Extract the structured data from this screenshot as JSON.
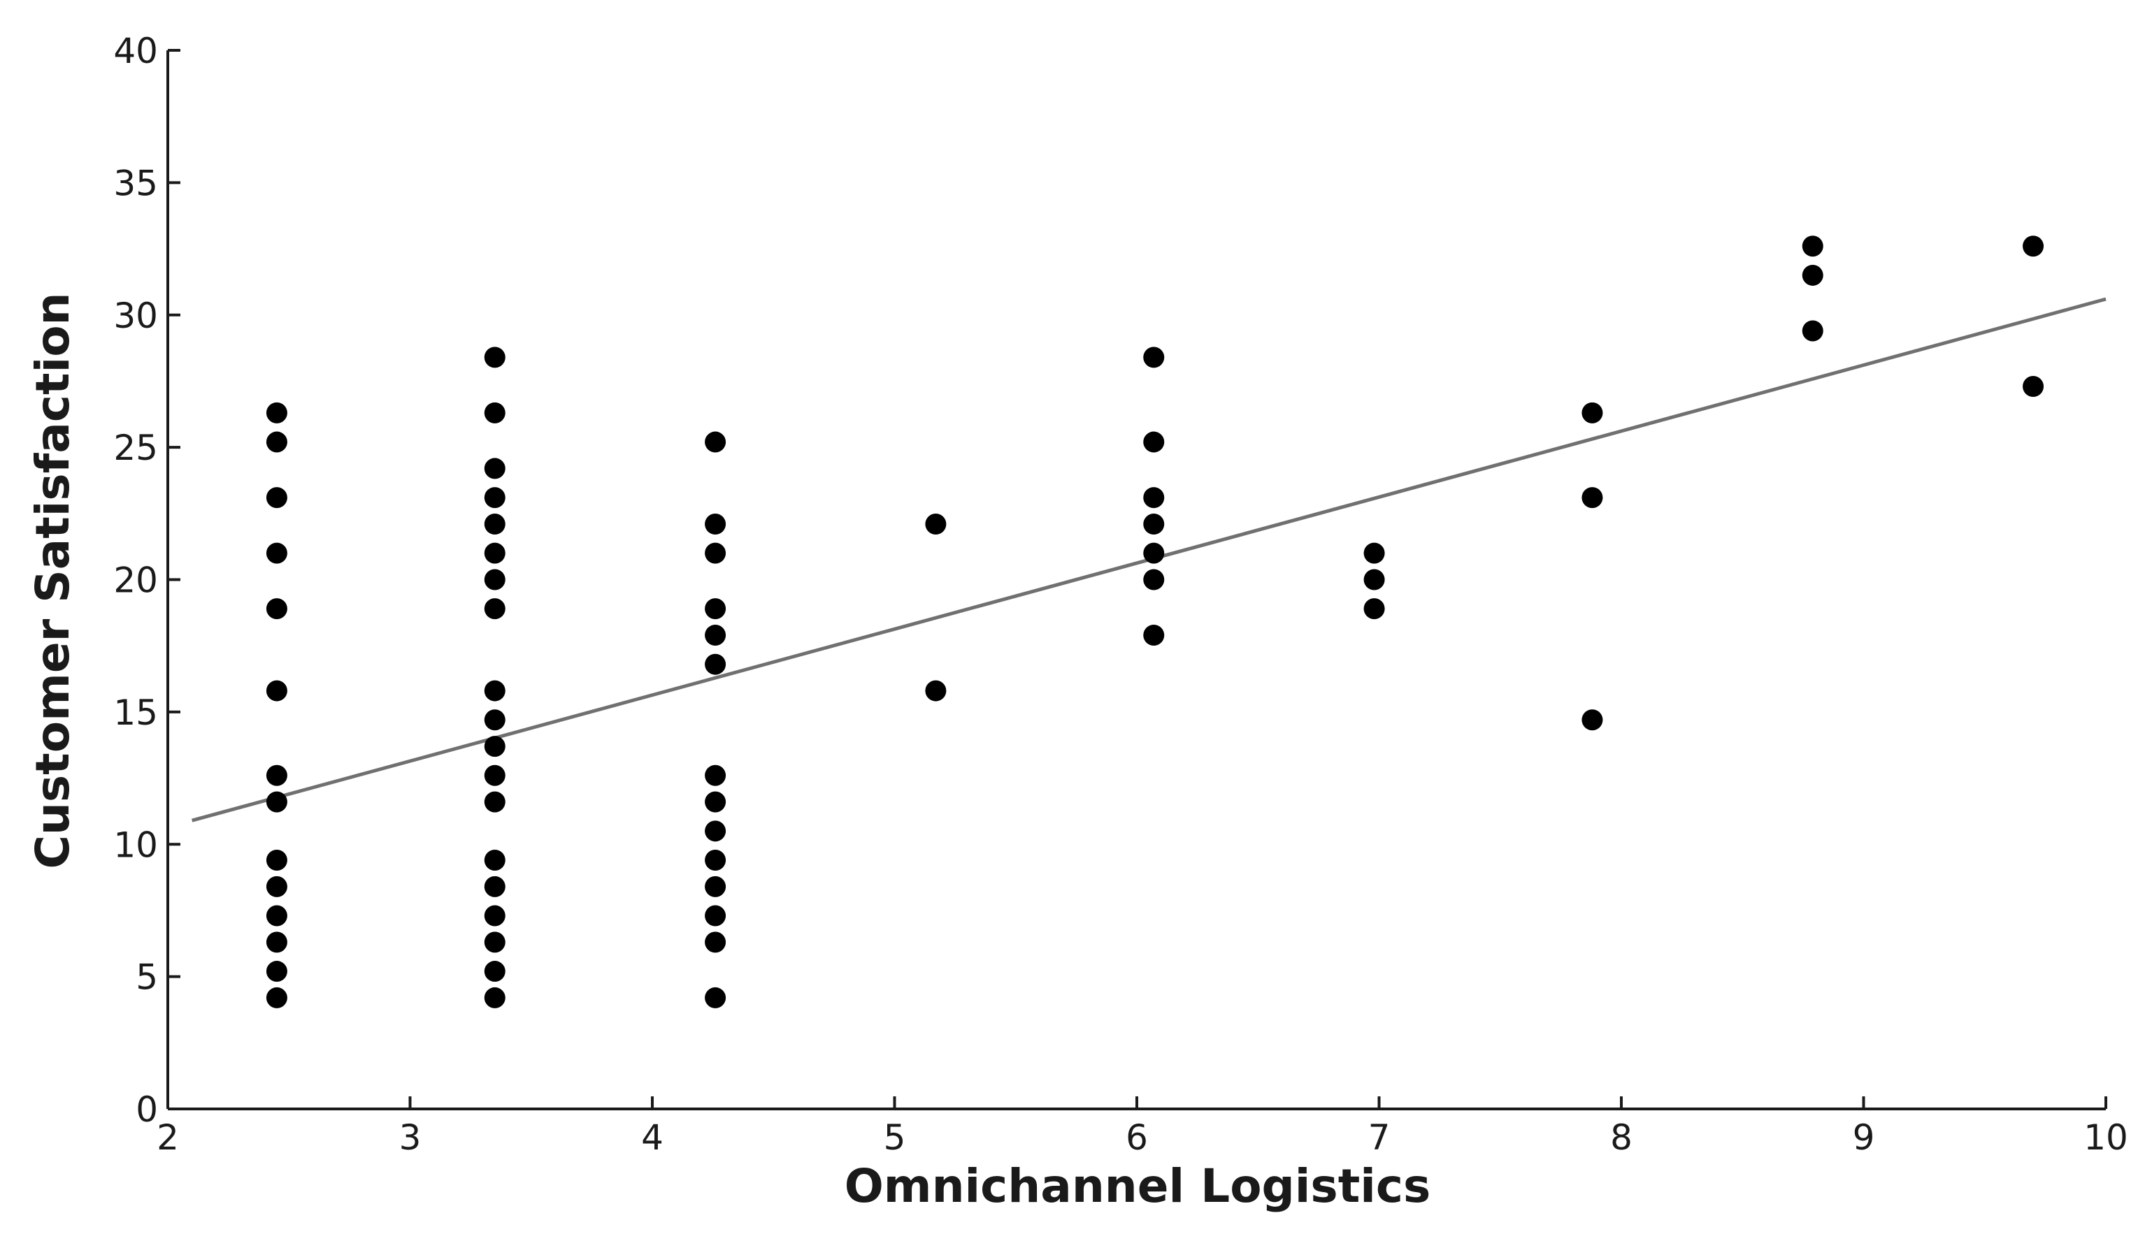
{
  "chart_data": {
    "type": "scatter",
    "title": "",
    "xlabel": "Omnichannel Logistics",
    "ylabel": "Customer Satisfaction",
    "xlim": [
      2,
      10
    ],
    "ylim": [
      0,
      40
    ],
    "xticks": [
      "2",
      "3",
      "4",
      "5",
      "6",
      "7",
      "8",
      "9",
      "10"
    ],
    "yticks": [
      "0",
      "5",
      "10",
      "15",
      "20",
      "25",
      "30",
      "35",
      "40"
    ],
    "grid": false,
    "legend": "none",
    "colors": {
      "points": "#000000",
      "trendline": "#707070",
      "axes": "#1a1a1a"
    },
    "points": [
      [
        2.45,
        4.2
      ],
      [
        2.45,
        5.2
      ],
      [
        2.45,
        6.3
      ],
      [
        2.45,
        7.3
      ],
      [
        2.45,
        8.4
      ],
      [
        2.45,
        9.4
      ],
      [
        2.45,
        11.6
      ],
      [
        2.45,
        12.6
      ],
      [
        2.45,
        15.8
      ],
      [
        2.45,
        18.9
      ],
      [
        2.45,
        21.0
      ],
      [
        2.45,
        23.1
      ],
      [
        2.45,
        25.2
      ],
      [
        2.45,
        26.3
      ],
      [
        3.35,
        4.2
      ],
      [
        3.35,
        5.2
      ],
      [
        3.35,
        6.3
      ],
      [
        3.35,
        7.3
      ],
      [
        3.35,
        8.4
      ],
      [
        3.35,
        9.4
      ],
      [
        3.35,
        11.6
      ],
      [
        3.35,
        12.6
      ],
      [
        3.35,
        13.7
      ],
      [
        3.35,
        14.7
      ],
      [
        3.35,
        15.8
      ],
      [
        3.35,
        18.9
      ],
      [
        3.35,
        20.0
      ],
      [
        3.35,
        21.0
      ],
      [
        3.35,
        22.1
      ],
      [
        3.35,
        23.1
      ],
      [
        3.35,
        24.2
      ],
      [
        3.35,
        26.3
      ],
      [
        3.35,
        28.4
      ],
      [
        4.26,
        4.2
      ],
      [
        4.26,
        6.3
      ],
      [
        4.26,
        7.3
      ],
      [
        4.26,
        8.4
      ],
      [
        4.26,
        9.4
      ],
      [
        4.26,
        10.5
      ],
      [
        4.26,
        11.6
      ],
      [
        4.26,
        12.6
      ],
      [
        4.26,
        16.8
      ],
      [
        4.26,
        17.9
      ],
      [
        4.26,
        18.9
      ],
      [
        4.26,
        21.0
      ],
      [
        4.26,
        22.1
      ],
      [
        4.26,
        25.2
      ],
      [
        5.17,
        15.8
      ],
      [
        5.17,
        22.1
      ],
      [
        6.07,
        17.9
      ],
      [
        6.07,
        20.0
      ],
      [
        6.07,
        21.0
      ],
      [
        6.07,
        22.1
      ],
      [
        6.07,
        23.1
      ],
      [
        6.07,
        25.2
      ],
      [
        6.07,
        28.4
      ],
      [
        6.98,
        18.9
      ],
      [
        6.98,
        20.0
      ],
      [
        6.98,
        21.0
      ],
      [
        7.88,
        14.7
      ],
      [
        7.88,
        23.1
      ],
      [
        7.88,
        26.3
      ],
      [
        8.79,
        29.4
      ],
      [
        8.79,
        31.5
      ],
      [
        8.79,
        32.6
      ],
      [
        9.7,
        27.3
      ],
      [
        9.7,
        32.6
      ]
    ],
    "trendline": {
      "x": [
        2.1,
        10.0
      ],
      "y": [
        10.9,
        30.6
      ]
    }
  }
}
